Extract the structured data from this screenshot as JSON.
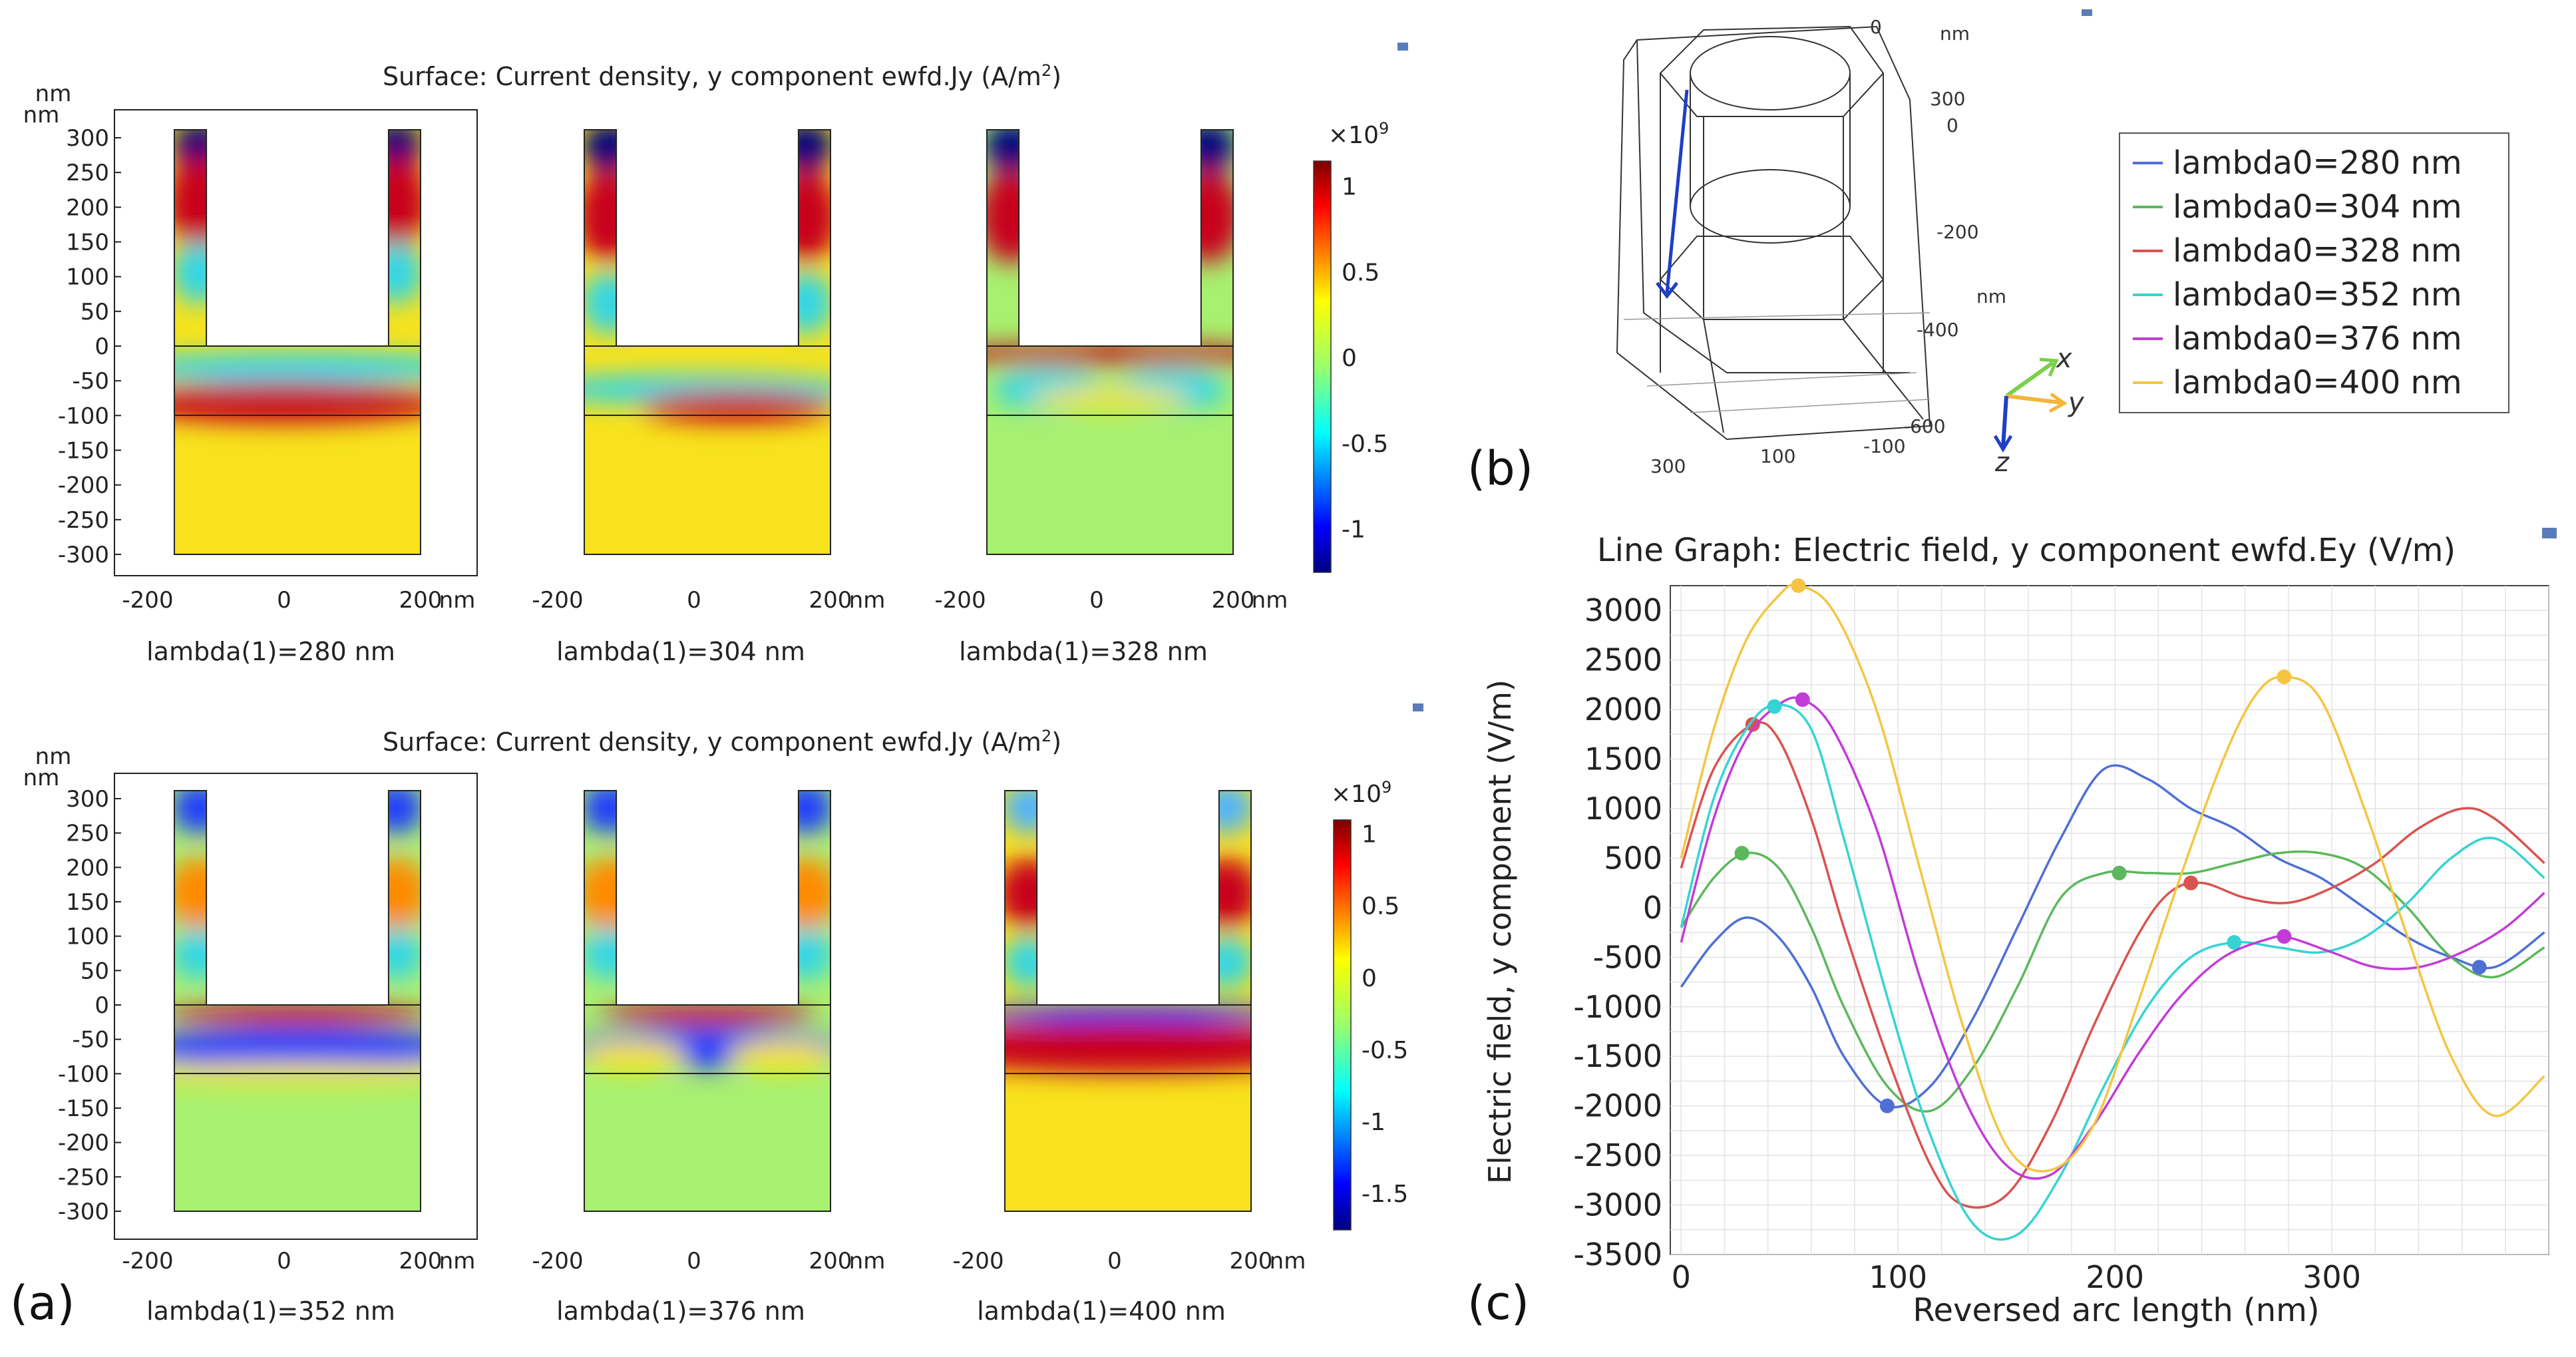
{
  "panel_a": {
    "label": "(a)",
    "rows": [
      {
        "title": "Surface: Current density, y component ewfd.Jy (A/m",
        "title_sup": "2",
        "title_end": ")",
        "y_unit": "nm",
        "x_unit": "nm",
        "y_ticks": [
          "300",
          "250",
          "200",
          "150",
          "100",
          "50",
          "0",
          "-50",
          "-100",
          "-150",
          "-200",
          "-250",
          "-300"
        ],
        "x_ticks": [
          "-200",
          "0",
          "200"
        ],
        "plots": [
          {
            "caption": "lambda(1)=280 nm",
            "mode": "r1a"
          },
          {
            "caption": "lambda(1)=304 nm",
            "mode": "r1b"
          },
          {
            "caption": "lambda(1)=328 nm",
            "mode": "r1c"
          }
        ],
        "colorbar": {
          "exponent": "×10",
          "exponent_sup": "9",
          "ticks": [
            "1",
            "0.5",
            "0",
            "-0.5",
            "-1"
          ],
          "range": [
            -1.25,
            1.15
          ]
        }
      },
      {
        "title": "Surface: Current density, y component ewfd.Jy (A/m",
        "title_sup": "2",
        "title_end": ")",
        "y_unit": "nm",
        "x_unit": "nm",
        "y_ticks": [
          "300",
          "250",
          "200",
          "150",
          "100",
          "50",
          "0",
          "-50",
          "-100",
          "-150",
          "-200",
          "-250",
          "-300"
        ],
        "x_ticks": [
          "-200",
          "0",
          "200"
        ],
        "plots": [
          {
            "caption": "lambda(1)=352 nm",
            "mode": "r2a"
          },
          {
            "caption": "lambda(1)=376 nm",
            "mode": "r2b"
          },
          {
            "caption": "lambda(1)=400 nm",
            "mode": "r2c"
          }
        ],
        "colorbar": {
          "exponent": "×10",
          "exponent_sup": "9",
          "ticks": [
            "1",
            "0.5",
            "0",
            "-0.5",
            "-1",
            "-1.5"
          ],
          "range": [
            -1.75,
            1.1
          ]
        }
      }
    ]
  },
  "panel_b": {
    "label": "(b)",
    "axis_labels": [
      "0",
      "nm",
      "300",
      "0",
      "-200",
      "nm",
      "-400",
      "-600",
      "-100",
      "100",
      "300"
    ],
    "triad": {
      "x": "x",
      "y": "y",
      "z": "z"
    },
    "legend": [
      {
        "label": "lambda0=280 nm",
        "color": "#4f6fd4"
      },
      {
        "label": "lambda0=304 nm",
        "color": "#5cb85c"
      },
      {
        "label": "lambda0=328 nm",
        "color": "#d9534f"
      },
      {
        "label": "lambda0=352 nm",
        "color": "#37d3d3"
      },
      {
        "label": "lambda0=376 nm",
        "color": "#c13cd6"
      },
      {
        "label": "lambda0=400 nm",
        "color": "#f5c542"
      }
    ]
  },
  "panel_c": {
    "label": "(c)",
    "chart_data": {
      "type": "line",
      "title": "Line Graph: Electric field, y component ewfd.Ey (V/m)",
      "xlabel": "Reversed arc length (nm)",
      "ylabel": "Electric field, y component (V/m)",
      "xlim": [
        -5,
        400
      ],
      "ylim": [
        -3500,
        3250
      ],
      "x_ticks": [
        0,
        100,
        200,
        300
      ],
      "y_ticks": [
        3000,
        2500,
        2000,
        1500,
        1000,
        500,
        0,
        -500,
        -1000,
        -1500,
        -2000,
        -2500,
        -3000,
        -3500
      ],
      "grid": true,
      "series": [
        {
          "name": "lambda0=280 nm",
          "color": "#4f6fd4",
          "x": [
            0,
            15,
            30,
            45,
            60,
            75,
            95,
            115,
            135,
            155,
            175,
            195,
            215,
            235,
            255,
            275,
            295,
            315,
            335,
            355,
            375,
            398
          ],
          "y": [
            -800,
            -350,
            -100,
            -300,
            -800,
            -1500,
            -2000,
            -1800,
            -1100,
            -200,
            700,
            1400,
            1300,
            1000,
            800,
            500,
            300,
            0,
            -300,
            -500,
            -600,
            -250
          ],
          "marker": [
            95,
            -2000
          ]
        },
        {
          "name": "lambda0=304 nm",
          "color": "#5cb85c",
          "x": [
            0,
            15,
            30,
            45,
            60,
            75,
            95,
            115,
            135,
            155,
            175,
            195,
            215,
            235,
            255,
            275,
            295,
            315,
            335,
            355,
            375,
            398
          ],
          "y": [
            -200,
            300,
            550,
            400,
            -200,
            -1000,
            -1800,
            -2050,
            -1600,
            -800,
            100,
            350,
            350,
            350,
            450,
            550,
            550,
            400,
            0,
            -500,
            -700,
            -400
          ],
          "marker": [
            28,
            550
          ]
        },
        {
          "name": "lambda0=328 nm",
          "color": "#d9534f",
          "x": [
            0,
            15,
            33,
            45,
            60,
            75,
            95,
            115,
            130,
            150,
            170,
            190,
            210,
            225,
            240,
            260,
            280,
            300,
            320,
            340,
            360,
            375,
            398
          ],
          "y": [
            400,
            1400,
            1850,
            1700,
            900,
            -200,
            -1500,
            -2600,
            -3000,
            -2900,
            -2200,
            -1200,
            -300,
            150,
            250,
            100,
            50,
            200,
            450,
            800,
            1000,
            900,
            450
          ],
          "marker": [
            33,
            1850
          ]
        },
        {
          "name": "lambda0=352 nm",
          "color": "#37d3d3",
          "x": [
            0,
            15,
            30,
            44,
            60,
            75,
            95,
            115,
            135,
            155,
            175,
            195,
            215,
            235,
            255,
            275,
            295,
            315,
            335,
            355,
            375,
            398
          ],
          "y": [
            -200,
            1100,
            1800,
            2050,
            1800,
            700,
            -900,
            -2300,
            -3200,
            -3300,
            -2700,
            -1800,
            -1000,
            -500,
            -350,
            -400,
            -450,
            -300,
            50,
            500,
            700,
            300
          ],
          "marker": [
            255,
            -350
          ]
        },
        {
          "name": "lambda0=376 nm",
          "color": "#c13cd6",
          "x": [
            0,
            15,
            30,
            45,
            56,
            70,
            90,
            110,
            130,
            150,
            170,
            190,
            210,
            230,
            250,
            270,
            280,
            300,
            320,
            340,
            360,
            380,
            398
          ],
          "y": [
            -350,
            900,
            1700,
            2050,
            2100,
            1800,
            800,
            -700,
            -1900,
            -2600,
            -2700,
            -2200,
            -1500,
            -900,
            -500,
            -320,
            -300,
            -450,
            -600,
            -600,
            -450,
            -200,
            150
          ],
          "marker": [
            56,
            2100
          ]
        },
        {
          "name": "lambda0=400 nm",
          "color": "#f5c542",
          "x": [
            0,
            15,
            30,
            45,
            54,
            70,
            90,
            110,
            130,
            150,
            170,
            190,
            210,
            230,
            250,
            265,
            278,
            295,
            315,
            335,
            355,
            375,
            398
          ],
          "y": [
            500,
            1800,
            2700,
            3150,
            3250,
            3000,
            2000,
            400,
            -1200,
            -2400,
            -2650,
            -2200,
            -1000,
            300,
            1500,
            2150,
            2330,
            2100,
            1000,
            -300,
            -1500,
            -2100,
            -1700
          ],
          "marker": [
            54,
            3250
          ]
        }
      ],
      "extra_markers": [
        {
          "series": "lambda0=280 nm",
          "x": 368,
          "y": -600
        },
        {
          "series": "lambda0=304 nm",
          "x": 202,
          "y": 350
        },
        {
          "series": "lambda0=328 nm",
          "x": 235,
          "y": 250
        },
        {
          "series": "lambda0=352 nm",
          "x": 43,
          "y": 2030
        },
        {
          "series": "lambda0=376 nm",
          "x": 278,
          "y": -290
        },
        {
          "series": "lambda0=400 nm",
          "x": 278,
          "y": 2330
        }
      ]
    }
  }
}
